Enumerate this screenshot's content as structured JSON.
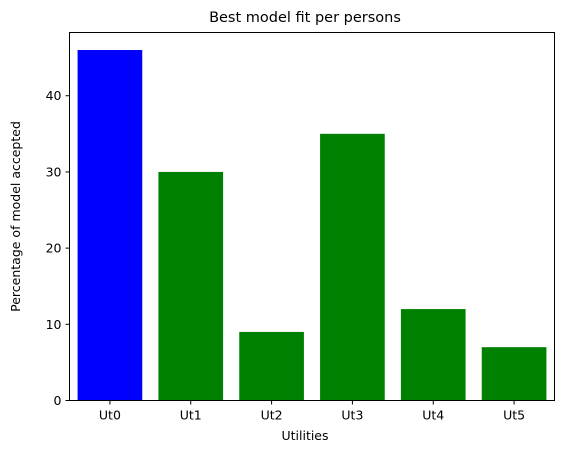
{
  "chart_data": {
    "type": "bar",
    "title": "Best model fit per persons",
    "xlabel": "Utilities",
    "ylabel": "Percentage of model accepted",
    "categories": [
      "Ut0",
      "Ut1",
      "Ut2",
      "Ut3",
      "Ut4",
      "Ut5"
    ],
    "values": [
      46,
      30,
      9,
      35,
      12,
      7
    ],
    "colors": [
      "#0000ff",
      "#008000",
      "#008000",
      "#008000",
      "#008000",
      "#008000"
    ],
    "ylim": [
      0,
      48.3
    ],
    "yticks": [
      0,
      10,
      20,
      30,
      40
    ],
    "grid": false,
    "legend": "none"
  }
}
